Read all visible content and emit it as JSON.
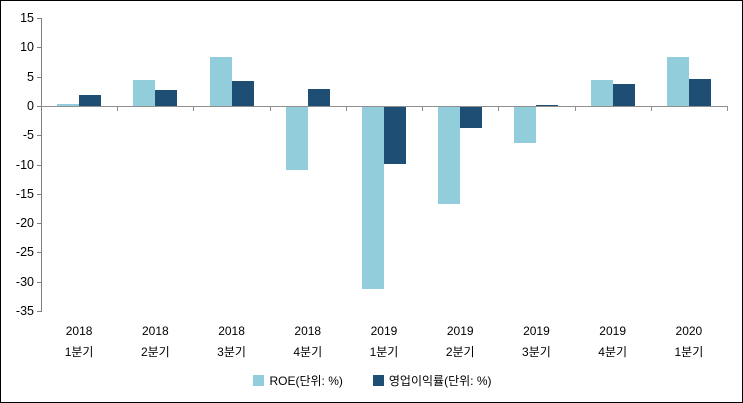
{
  "chart_data": {
    "type": "bar",
    "title": "",
    "xlabel": "",
    "ylabel": "",
    "categories": [
      "2018 1분기",
      "2018 2분기",
      "2018 3분기",
      "2018 4분기",
      "2019 1분기",
      "2019 2분기",
      "2019 3분기",
      "2019 4분기",
      "2020 1분기"
    ],
    "series": [
      {
        "name": "ROE(단위: %)",
        "color": "#92CDDC",
        "values": [
          0.4,
          4.4,
          8.3,
          -10.9,
          -31.2,
          -16.7,
          -6.3,
          4.5,
          8.4
        ]
      },
      {
        "name": "영업이익률(단위: %)",
        "color": "#1F4E74",
        "values": [
          1.9,
          2.7,
          4.3,
          2.9,
          -10.0,
          -3.7,
          0.2,
          3.7,
          4.6
        ]
      }
    ],
    "ylim": [
      -35,
      15
    ],
    "yticks": [
      15,
      10,
      5,
      0,
      -5,
      -10,
      -15,
      -20,
      -25,
      -30,
      -35
    ],
    "grid": false,
    "legend_position": "bottom",
    "axis_color": "#7f7f7f",
    "zero_line_color": "#8f8f8f"
  }
}
